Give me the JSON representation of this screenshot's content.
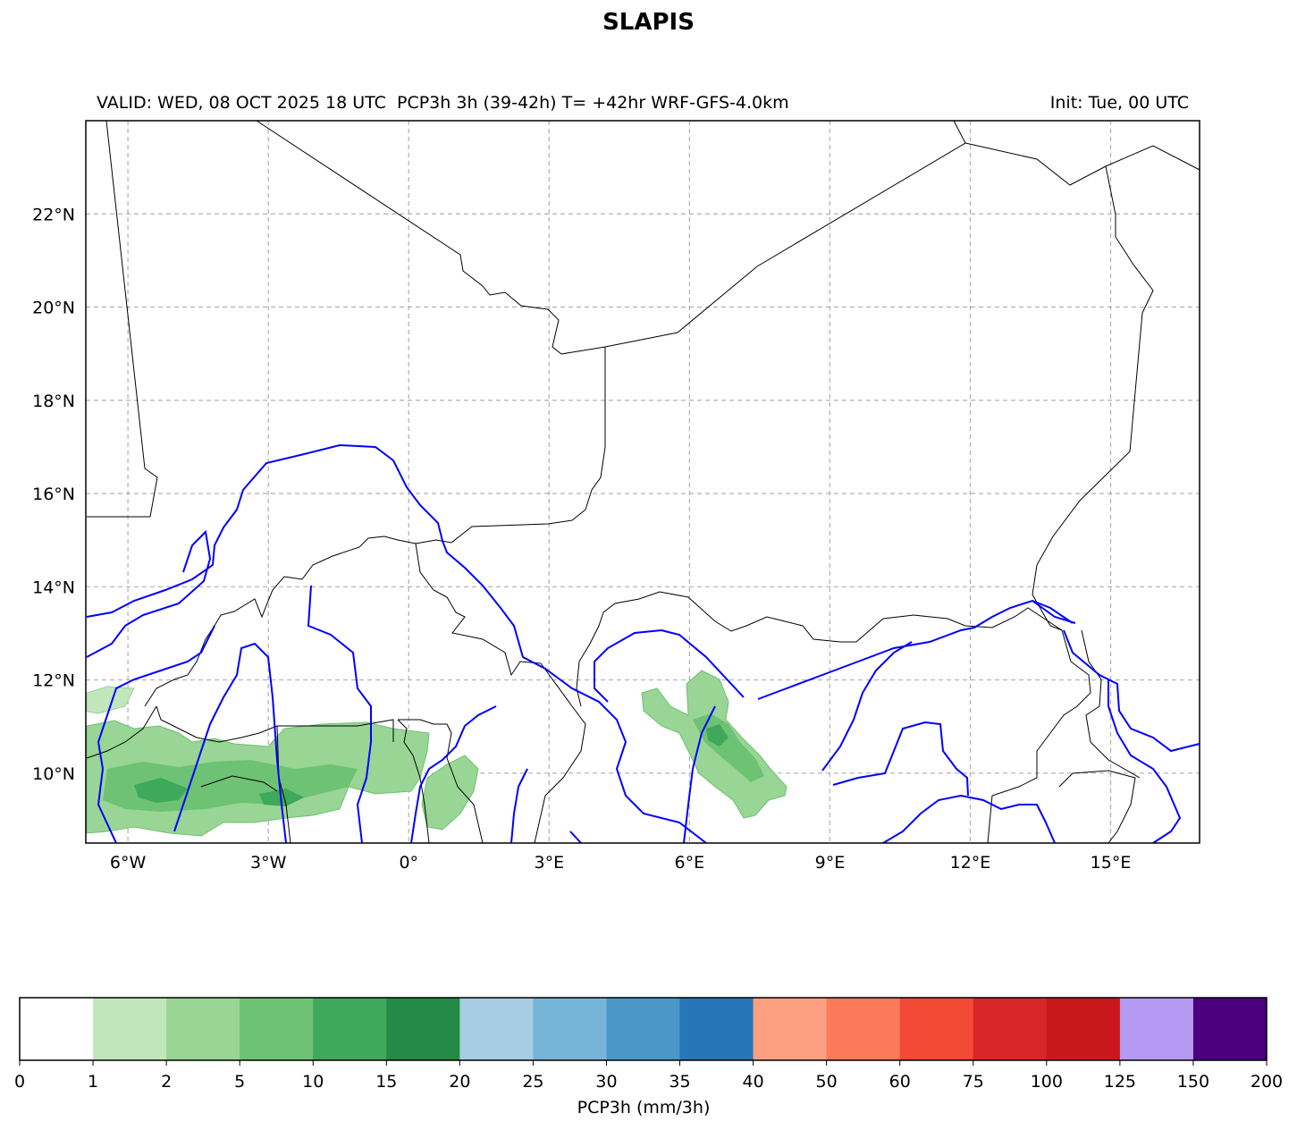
{
  "title": "SLAPIS",
  "header": {
    "valid_text": "VALID: WED, 08 OCT 2025 18 UTC",
    "product_text": "PCP3h 3h (39-42h) T= +42hr WRF-GFS-4.0km",
    "init_text": "Init: Tue, 00 UTC"
  },
  "map": {
    "extent": {
      "lon": [
        -6.9,
        16.9
      ],
      "lat": [
        8.5,
        24.0
      ]
    },
    "lon_ticks": [
      {
        "value": -6,
        "label": "6°W"
      },
      {
        "value": -3,
        "label": "3°W"
      },
      {
        "value": 0,
        "label": "0°"
      },
      {
        "value": 3,
        "label": "3°E"
      },
      {
        "value": 6,
        "label": "6°E"
      },
      {
        "value": 9,
        "label": "9°E"
      },
      {
        "value": 12,
        "label": "12°E"
      },
      {
        "value": 15,
        "label": "15°E"
      }
    ],
    "lat_ticks": [
      {
        "value": 10,
        "label": "10°N"
      },
      {
        "value": 12,
        "label": "12°N"
      },
      {
        "value": 14,
        "label": "14°N"
      },
      {
        "value": 16,
        "label": "16°N"
      },
      {
        "value": 18,
        "label": "18°N"
      },
      {
        "value": 20,
        "label": "20°N"
      },
      {
        "value": 22,
        "label": "22°N"
      }
    ],
    "gridlines": true,
    "border_color": "#000000",
    "river_color": "#0000ff",
    "grid_color": "#b0b0b0"
  },
  "colorbar": {
    "label": "PCP3h (mm/3h)",
    "bounds": [
      "0",
      "1",
      "2",
      "5",
      "10",
      "15",
      "20",
      "25",
      "30",
      "35",
      "40",
      "50",
      "60",
      "75",
      "100",
      "125",
      "150",
      "200"
    ],
    "colors": [
      "#ffffff",
      "#c2e6bc",
      "#99d594",
      "#6ec273",
      "#3ea95a",
      "#238b45",
      "#a6cde3",
      "#76b4d8",
      "#4a97c8",
      "#2676b7",
      "#fc9f80",
      "#fc7a5a",
      "#f34a36",
      "#d92628",
      "#c9181d",
      "#b499f2",
      "#4b0080"
    ]
  }
}
